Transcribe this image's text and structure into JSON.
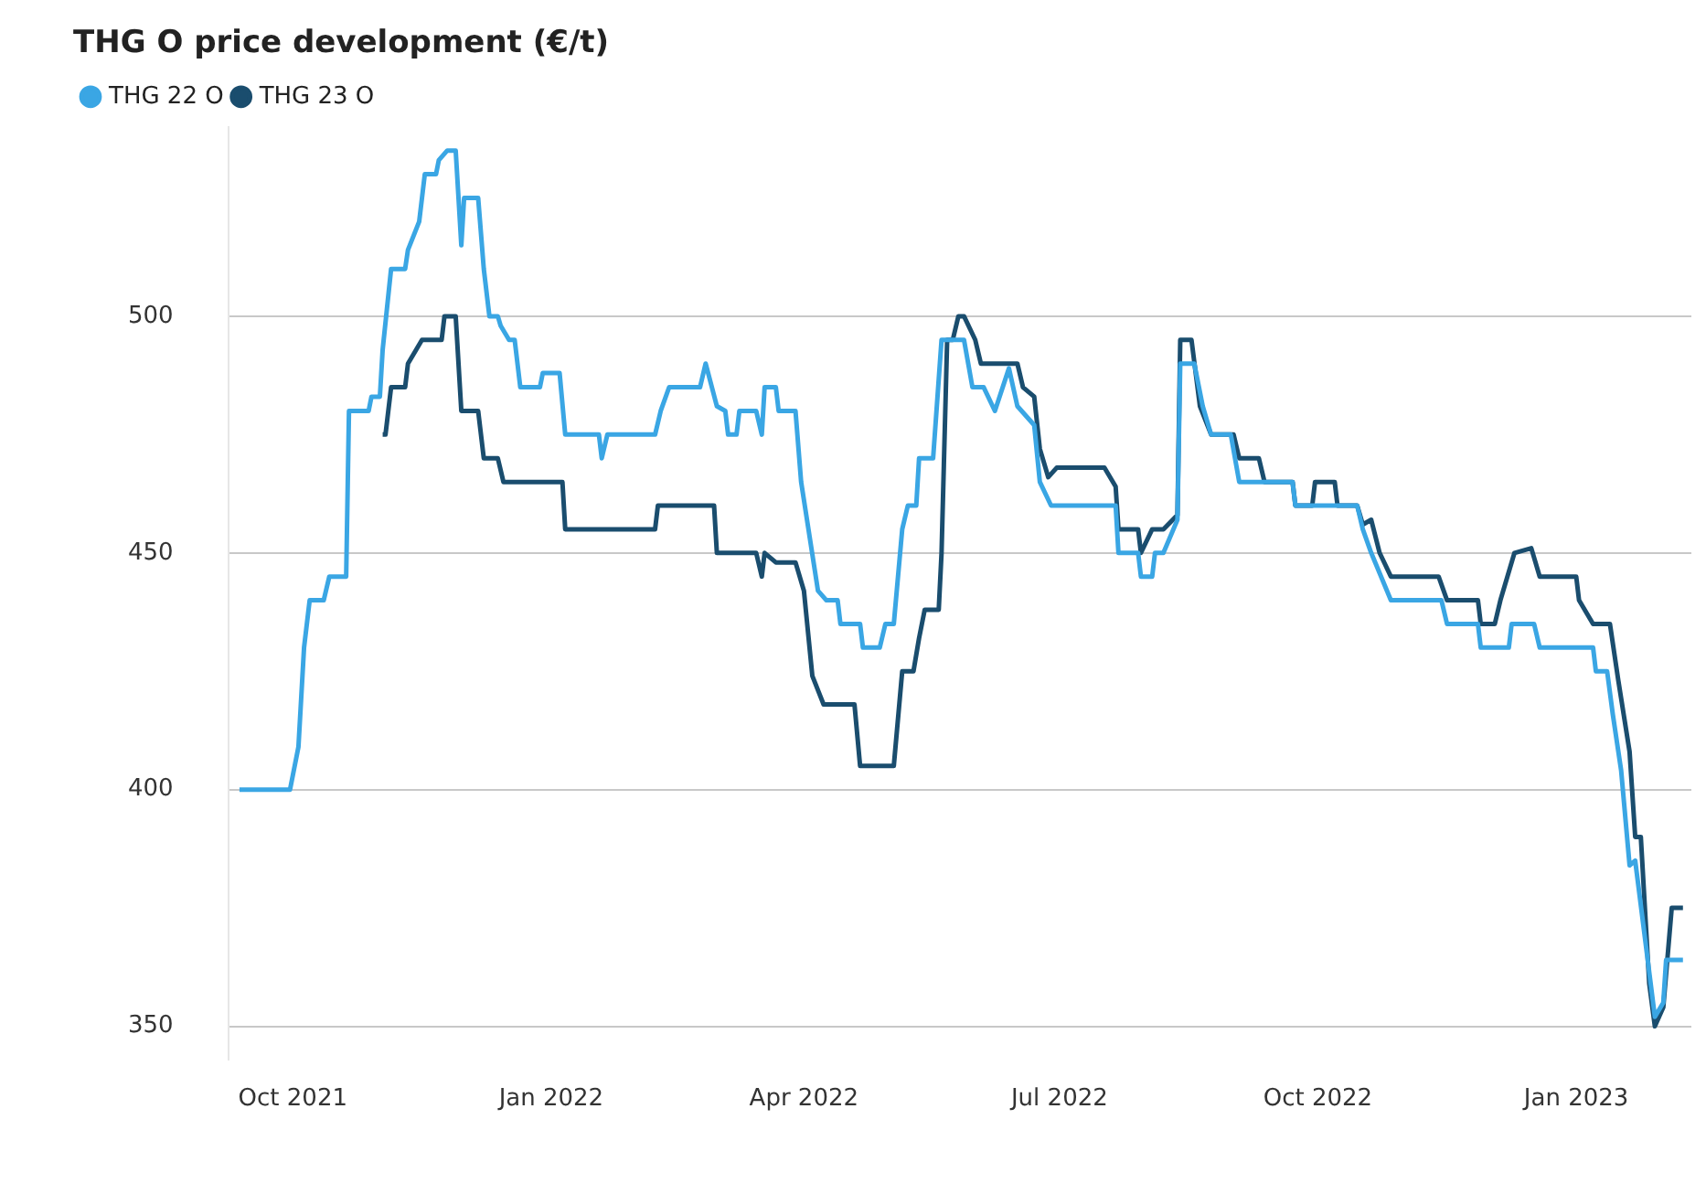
{
  "chart_data": {
    "type": "line",
    "title": "THG O price development (€/t)",
    "legend": "top left",
    "grid": "y",
    "marker": "none",
    "line_style": "solid",
    "xlim": [
      "2021-09-08",
      "2023-02-11"
    ],
    "ylim": [
      343,
      540
    ],
    "yticks": [
      350,
      400,
      450,
      500
    ],
    "xticks": [
      {
        "value": "2021-10-01",
        "label": "Oct 2021"
      },
      {
        "value": "2022-01-01",
        "label": "Jan 2022"
      },
      {
        "value": "2022-04-01",
        "label": "Apr 2022"
      },
      {
        "value": "2022-07-01",
        "label": "Jul 2022"
      },
      {
        "value": "2022-10-01",
        "label": "Oct 2022"
      },
      {
        "value": "2023-01-01",
        "label": "Jan 2023"
      }
    ],
    "series": [
      {
        "name": "THG 22 O",
        "color": "#3aa6e4",
        "x": [
          "2021-09-12",
          "2021-09-30",
          "2021-10-03",
          "2021-10-05",
          "2021-10-07",
          "2021-10-12",
          "2021-10-14",
          "2021-10-20",
          "2021-10-21",
          "2021-10-28",
          "2021-10-29",
          "2021-11-01",
          "2021-11-02",
          "2021-11-05",
          "2021-11-10",
          "2021-11-11",
          "2021-11-15",
          "2021-11-17",
          "2021-11-21",
          "2021-11-22",
          "2021-11-25",
          "2021-11-28",
          "2021-11-30",
          "2021-12-01",
          "2021-12-06",
          "2021-12-08",
          "2021-12-10",
          "2021-12-13",
          "2021-12-14",
          "2021-12-17",
          "2021-12-19",
          "2021-12-21",
          "2021-12-28",
          "2021-12-29",
          "2022-01-04",
          "2022-01-06",
          "2022-01-18",
          "2022-01-19",
          "2022-01-21",
          "2022-02-07",
          "2022-02-09",
          "2022-02-12",
          "2022-02-23",
          "2022-02-25",
          "2022-03-01",
          "2022-03-04",
          "2022-03-05",
          "2022-03-08",
          "2022-03-09",
          "2022-03-15",
          "2022-03-17",
          "2022-03-18",
          "2022-03-22",
          "2022-03-23",
          "2022-03-29",
          "2022-03-31",
          "2022-04-06",
          "2022-04-09",
          "2022-04-13",
          "2022-04-14",
          "2022-04-21",
          "2022-04-22",
          "2022-04-28",
          "2022-04-30",
          "2022-05-03",
          "2022-05-06",
          "2022-05-08",
          "2022-05-11",
          "2022-05-12",
          "2022-05-17",
          "2022-05-20",
          "2022-05-28",
          "2022-05-31",
          "2022-06-04",
          "2022-06-08",
          "2022-06-13",
          "2022-06-16",
          "2022-06-22",
          "2022-06-24",
          "2022-06-28",
          "2022-07-21",
          "2022-07-22",
          "2022-07-29",
          "2022-07-30",
          "2022-08-03",
          "2022-08-04",
          "2022-08-07",
          "2022-08-12",
          "2022-08-13",
          "2022-08-18",
          "2022-08-21",
          "2022-08-24",
          "2022-08-31",
          "2022-09-03",
          "2022-09-22",
          "2022-09-23",
          "2022-10-15",
          "2022-10-17",
          "2022-10-20",
          "2022-10-27",
          "2022-11-14",
          "2022-11-16",
          "2022-11-27",
          "2022-11-28",
          "2022-12-08",
          "2022-12-09",
          "2022-12-17",
          "2022-12-19",
          "2023-01-07",
          "2023-01-08",
          "2023-01-12",
          "2023-01-14",
          "2023-01-17",
          "2023-01-20",
          "2023-01-22",
          "2023-01-29",
          "2023-02-01",
          "2023-02-02",
          "2023-02-08"
        ],
        "values": [
          400,
          400,
          409,
          430,
          440,
          440,
          445,
          445,
          480,
          480,
          483,
          483,
          493,
          510,
          510,
          514,
          520,
          530,
          530,
          533,
          535,
          535,
          515,
          525,
          525,
          510,
          500,
          500,
          498,
          495,
          495,
          485,
          485,
          488,
          488,
          475,
          475,
          470,
          475,
          475,
          480,
          485,
          485,
          490,
          481,
          480,
          475,
          475,
          480,
          480,
          475,
          485,
          485,
          480,
          480,
          465,
          442,
          440,
          440,
          435,
          435,
          430,
          430,
          435,
          435,
          455,
          460,
          460,
          470,
          470,
          495,
          495,
          485,
          485,
          480,
          489,
          481,
          477,
          465,
          460,
          460,
          450,
          450,
          445,
          445,
          450,
          450,
          457,
          490,
          490,
          481,
          475,
          475,
          465,
          465,
          460,
          460,
          455,
          450,
          440,
          440,
          435,
          435,
          430,
          430,
          435,
          435,
          430,
          430,
          425,
          425,
          416,
          404,
          384,
          385,
          352,
          355,
          364,
          364
        ]
      },
      {
        "name": "THG 23 O",
        "color": "#1a4d6e",
        "x": [
          "2021-11-02",
          "2021-11-03",
          "2021-11-05",
          "2021-11-10",
          "2021-11-11",
          "2021-11-16",
          "2021-11-23",
          "2021-11-24",
          "2021-11-28",
          "2021-11-30",
          "2021-12-06",
          "2021-12-08",
          "2021-12-13",
          "2021-12-15",
          "2022-01-05",
          "2022-01-06",
          "2022-02-07",
          "2022-02-08",
          "2022-02-28",
          "2022-03-01",
          "2022-03-15",
          "2022-03-17",
          "2022-03-18",
          "2022-03-22",
          "2022-03-29",
          "2022-04-01",
          "2022-04-04",
          "2022-04-08",
          "2022-04-19",
          "2022-04-21",
          "2022-05-03",
          "2022-05-06",
          "2022-05-10",
          "2022-05-12",
          "2022-05-14",
          "2022-05-19",
          "2022-05-20",
          "2022-05-22",
          "2022-05-24",
          "2022-05-26",
          "2022-05-28",
          "2022-06-01",
          "2022-06-03",
          "2022-06-16",
          "2022-06-18",
          "2022-06-22",
          "2022-06-24",
          "2022-06-27",
          "2022-06-30",
          "2022-07-17",
          "2022-07-21",
          "2022-07-22",
          "2022-07-29",
          "2022-07-30",
          "2022-08-03",
          "2022-08-07",
          "2022-08-12",
          "2022-08-13",
          "2022-08-17",
          "2022-08-20",
          "2022-08-24",
          "2022-09-01",
          "2022-09-03",
          "2022-09-10",
          "2022-09-12",
          "2022-09-22",
          "2022-09-23",
          "2022-09-29",
          "2022-09-30",
          "2022-10-07",
          "2022-10-08",
          "2022-10-15",
          "2022-10-17",
          "2022-10-20",
          "2022-10-23",
          "2022-10-27",
          "2022-11-13",
          "2022-11-16",
          "2022-11-27",
          "2022-11-28",
          "2022-12-03",
          "2022-12-05",
          "2022-12-10",
          "2022-12-16",
          "2022-12-19",
          "2023-01-01",
          "2023-01-02",
          "2023-01-07",
          "2023-01-13",
          "2023-01-16",
          "2023-01-20",
          "2023-01-22",
          "2023-01-24",
          "2023-01-27",
          "2023-01-29",
          "2023-02-01",
          "2023-02-04",
          "2023-02-08"
        ],
        "values": [
          475,
          475,
          485,
          485,
          490,
          495,
          495,
          500,
          500,
          480,
          480,
          470,
          470,
          465,
          465,
          455,
          455,
          460,
          460,
          450,
          450,
          445,
          450,
          448,
          448,
          442,
          424,
          418,
          418,
          405,
          405,
          425,
          425,
          432,
          438,
          438,
          450,
          495,
          495,
          500,
          500,
          495,
          490,
          490,
          485,
          483,
          472,
          466,
          468,
          468,
          464,
          455,
          455,
          450,
          455,
          455,
          458,
          495,
          495,
          481,
          475,
          475,
          470,
          470,
          465,
          465,
          460,
          460,
          465,
          465,
          460,
          460,
          456,
          457,
          450,
          445,
          445,
          440,
          440,
          435,
          435,
          440,
          450,
          451,
          445,
          445,
          440,
          435,
          435,
          423,
          408,
          390,
          390,
          359,
          350,
          354,
          375,
          375
        ]
      }
    ]
  }
}
